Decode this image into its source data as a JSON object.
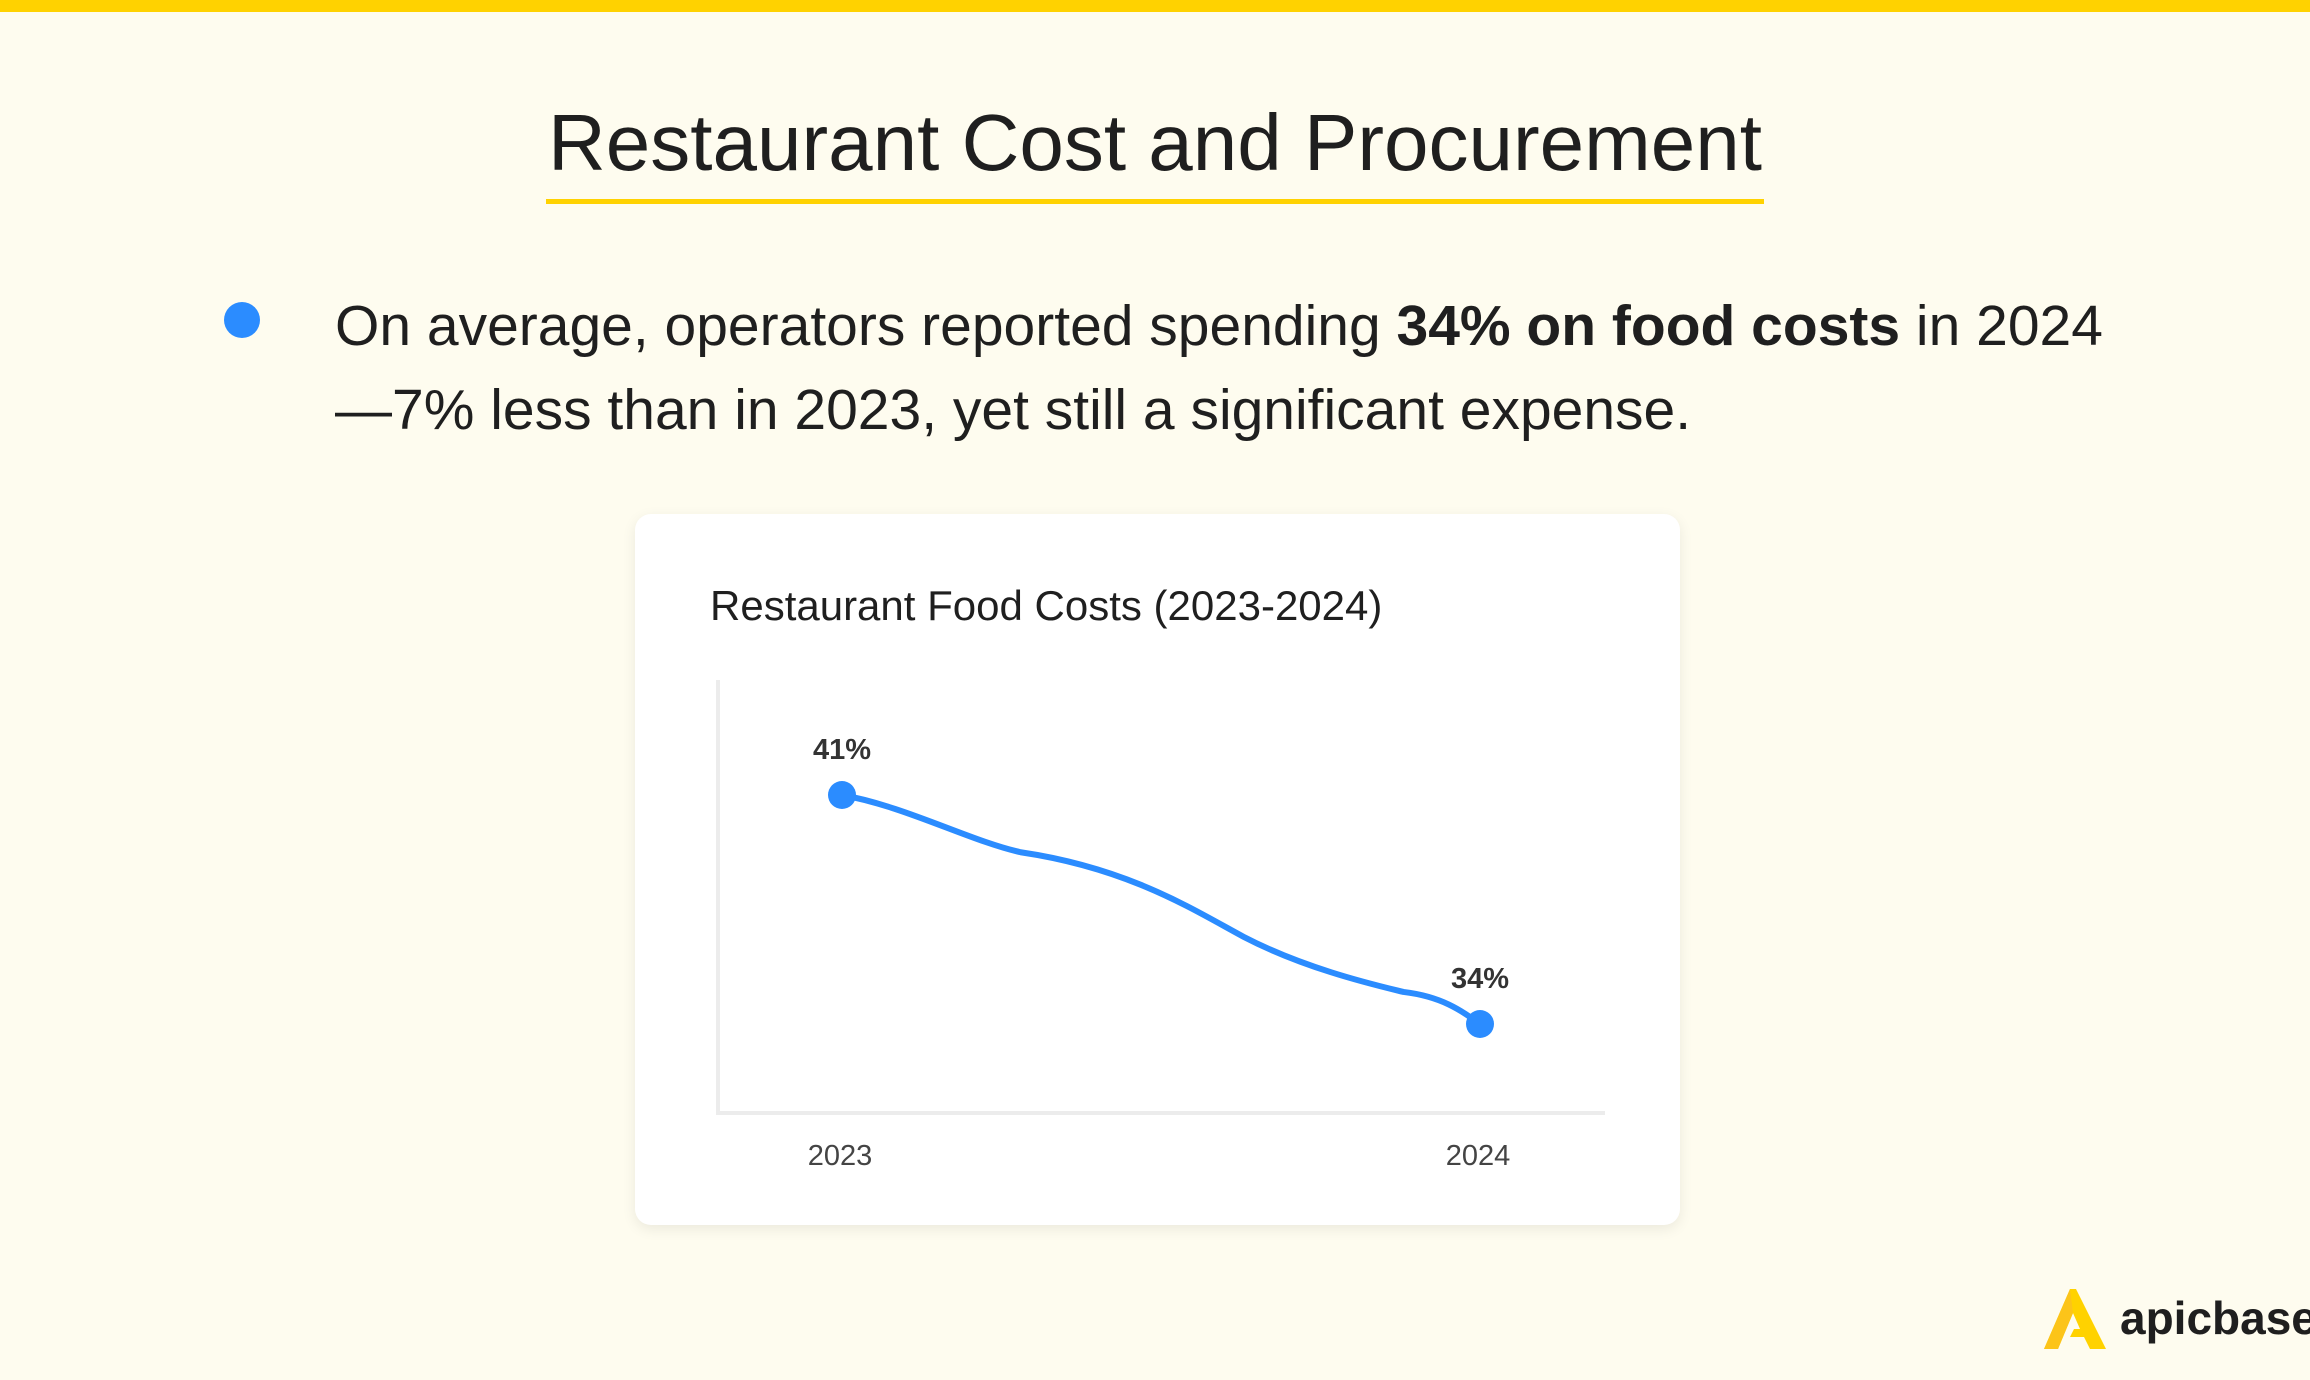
{
  "header": {
    "title": "Restaurant Cost and Procurement"
  },
  "bullet": {
    "text_before": "On average, operators reported spending ",
    "text_bold": "34% on food costs",
    "text_after": " in 2024—7% less than in 2023, yet still a significant expense."
  },
  "chart_data": {
    "type": "line",
    "title": "Restaurant Food Costs (2023-2024)",
    "categories": [
      "2023",
      "2024"
    ],
    "values": [
      41,
      34
    ],
    "data_labels": [
      "41%",
      "34%"
    ],
    "xlabel": "",
    "ylabel": "",
    "grid": false,
    "color": "#2b8cff"
  },
  "brand": {
    "name": "apicbase",
    "accent": "#ffd200"
  }
}
